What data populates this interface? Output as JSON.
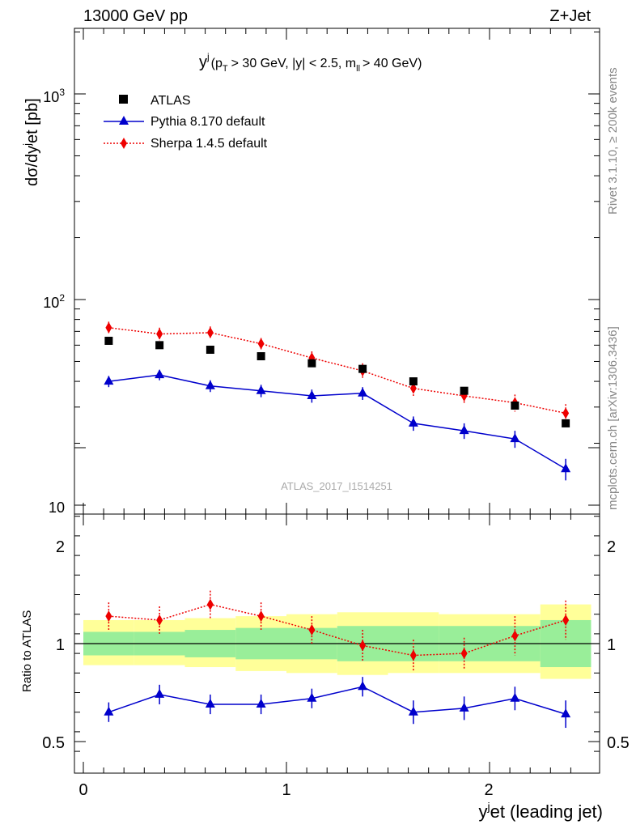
{
  "header": {
    "left": "13000 GeV pp",
    "right": "Z+Jet"
  },
  "side_text": {
    "rivet": "Rivet 3.1.10, ≥ 200k events",
    "mcplots": "mcplots.cern.ch [arXiv:1306.3436]"
  },
  "legend": {
    "atlas": "ATLAS",
    "pythia": "Pythia 8.170 default",
    "sherpa": "Sherpa 1.4.5 default"
  },
  "watermark": "ATLAS_2017_I1514251",
  "colors": {
    "atlas": "#000000",
    "pythia": "#0000cc",
    "sherpa": "#ee0000",
    "band_inner": "#99ee99",
    "band_outer": "#ffff99"
  },
  "chart_data": [
    {
      "type": "scatter",
      "panel": "main",
      "title": {
        "y": "y",
        "j": "j",
        "pre": "(p",
        "T": "T",
        "mid": "> 30 GeV, |y| < 2.5, m",
        "ll": "ll",
        "post": "> 40 GeV)"
      },
      "ylabel": {
        "a": "dσ/dy",
        "j": "j",
        "b": "et [pb]"
      },
      "yscale": "log",
      "ylim": [
        10,
        2000
      ],
      "yticks": [
        {
          "base": "10",
          "exp": ""
        },
        {
          "base": "10",
          "exp": "2"
        },
        {
          "base": "10",
          "exp": "3"
        }
      ],
      "x_edges": [
        0,
        0.25,
        0.5,
        0.75,
        1.0,
        1.25,
        1.5,
        1.75,
        2.0,
        2.25,
        2.5
      ],
      "x": [
        0.125,
        0.375,
        0.625,
        0.875,
        1.125,
        1.375,
        1.625,
        1.875,
        2.125,
        2.375
      ],
      "series": [
        {
          "name": "ATLAS",
          "values": [
            63,
            60,
            57,
            53,
            49,
            46,
            40,
            36,
            30.5,
            25
          ]
        },
        {
          "name": "Pythia 8.170 default",
          "values": [
            40,
            43,
            38,
            36,
            34,
            35,
            25,
            23,
            21,
            15
          ],
          "errors": [
            2.5,
            2.5,
            2.5,
            2.5,
            2.5,
            2.5,
            2.0,
            2.0,
            2.0,
            1.8
          ]
        },
        {
          "name": "Sherpa 1.4.5 default",
          "values": [
            73,
            68,
            69,
            61,
            52,
            45,
            37,
            34,
            31.5,
            28
          ],
          "errors": [
            5,
            5,
            5,
            4,
            4,
            4,
            3,
            3,
            3,
            3
          ]
        }
      ]
    },
    {
      "type": "scatter",
      "panel": "ratio",
      "ylabel": "Ratio to ATLAS",
      "xlabel": {
        "y": "y",
        "j": "j",
        "rest": "et (leading jet)"
      },
      "ylim": [
        0.4,
        2.4
      ],
      "yticks": [
        "0.5",
        "1",
        "2"
      ],
      "xlim": [
        -0.1,
        2.55
      ],
      "xticks": [
        "0",
        "1",
        "2"
      ],
      "x_edges": [
        0,
        0.25,
        0.5,
        0.75,
        1.0,
        1.25,
        1.5,
        1.75,
        2.0,
        2.25,
        2.5
      ],
      "x": [
        0.125,
        0.375,
        0.625,
        0.875,
        1.125,
        1.375,
        1.625,
        1.875,
        2.125,
        2.375
      ],
      "bands": {
        "inner": [
          [
            0.94,
            1.06
          ],
          [
            0.94,
            1.06
          ],
          [
            0.93,
            1.07
          ],
          [
            0.92,
            1.08
          ],
          [
            0.92,
            1.08
          ],
          [
            0.91,
            1.09
          ],
          [
            0.91,
            1.09
          ],
          [
            0.91,
            1.09
          ],
          [
            0.91,
            1.09
          ],
          [
            0.88,
            1.12
          ]
        ],
        "outer": [
          [
            0.89,
            1.12
          ],
          [
            0.89,
            1.12
          ],
          [
            0.88,
            1.13
          ],
          [
            0.86,
            1.14
          ],
          [
            0.85,
            1.15
          ],
          [
            0.84,
            1.16
          ],
          [
            0.85,
            1.16
          ],
          [
            0.85,
            1.15
          ],
          [
            0.85,
            1.15
          ],
          [
            0.82,
            1.2
          ]
        ]
      },
      "series": [
        {
          "name": "Pythia 8.170 default",
          "values": [
            0.65,
            0.74,
            0.69,
            0.69,
            0.72,
            0.78,
            0.65,
            0.67,
            0.72,
            0.64
          ],
          "errors": [
            0.05,
            0.05,
            0.05,
            0.05,
            0.05,
            0.05,
            0.06,
            0.06,
            0.06,
            0.07
          ]
        },
        {
          "name": "Sherpa 1.4.5 default",
          "values": [
            1.14,
            1.12,
            1.2,
            1.14,
            1.07,
            0.99,
            0.94,
            0.95,
            1.04,
            1.12
          ],
          "errors": [
            0.07,
            0.07,
            0.07,
            0.07,
            0.07,
            0.08,
            0.08,
            0.08,
            0.1,
            0.1
          ]
        }
      ]
    }
  ]
}
